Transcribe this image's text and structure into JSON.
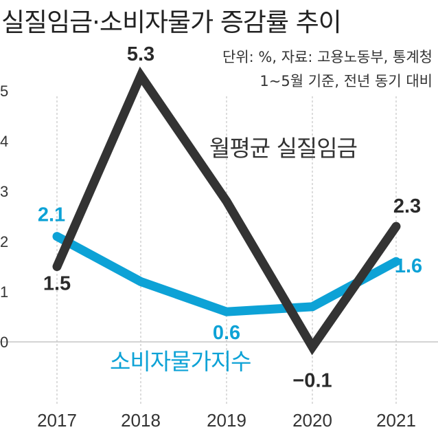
{
  "title": "실질임금·소비자물가 증감률 추이",
  "notes": [
    "단위: %, 자료: 고용노동부, 통계청",
    "1~5월 기준, 전년 동기 대비"
  ],
  "chart_data": {
    "type": "line",
    "title": "실질임금·소비자물가 증감률 추이",
    "x": [
      "2017",
      "2018",
      "2019",
      "2020",
      "2021"
    ],
    "yticks": [
      "0",
      "1",
      "2",
      "3",
      "4",
      "5"
    ],
    "ylim": [
      -1.4,
      5.5
    ],
    "xlabel": "",
    "ylabel": "",
    "series": [
      {
        "name": "월평균 실질임금",
        "values": [
          1.5,
          5.3,
          2.8,
          -0.1,
          2.3
        ],
        "labels": [
          "1.5",
          "5.3",
          "",
          "−0.1",
          "2.3"
        ],
        "color": "#333333"
      },
      {
        "name": "소비자물가지수",
        "values": [
          2.1,
          1.2,
          0.6,
          0.7,
          1.6
        ],
        "labels": [
          "2.1",
          "",
          "0.6",
          "",
          "1.6"
        ],
        "color": "#0da2d6"
      }
    ]
  }
}
